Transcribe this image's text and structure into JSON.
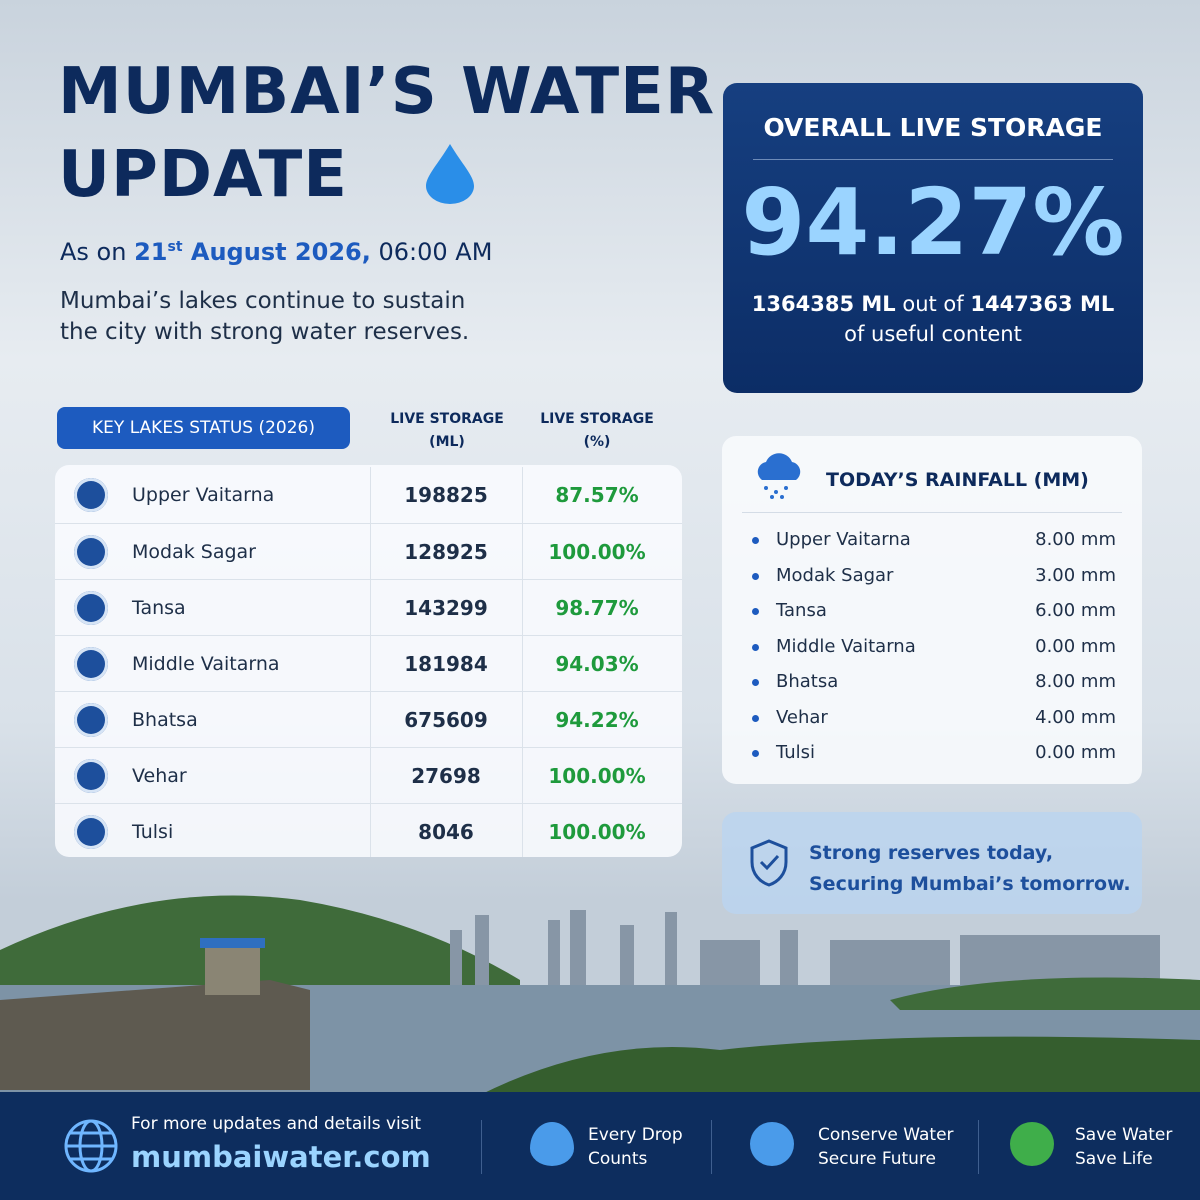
{
  "header": {
    "title_line1": "MUMBAI’S WATER",
    "title_line2": "UPDATE",
    "date_prefix": "As on",
    "date_day": "21",
    "date_suffix": "st",
    "date_rest": "August 2026,",
    "time": "06:00 AM",
    "description": "Mumbai’s lakes continue to sustain the city with strong water reserves."
  },
  "overall": {
    "title": "OVERALL LIVE STORAGE",
    "percent": "94.27%",
    "detail_amount": "1364385 ML",
    "detail_mid": "out of",
    "detail_total": "1447363 ML",
    "detail_end": "of useful content"
  },
  "lakes": {
    "badge": "KEY LAKES STATUS (2026)",
    "col_ml": [
      "LIVE STORAGE",
      "(ML)"
    ],
    "col_pct": [
      "LIVE STORAGE",
      "(%)"
    ],
    "rows": [
      [
        "Upper Vaitarna",
        "198825",
        "87.57%"
      ],
      [
        "Modak Sagar",
        "128925",
        "100.00%"
      ],
      [
        "Tansa",
        "143299",
        "98.77%"
      ],
      [
        "Middle Vaitarna",
        "181984",
        "94.03%"
      ],
      [
        "Bhatsa",
        "675609",
        "94.22%"
      ],
      [
        "Vehar",
        "27698",
        "100.00%"
      ],
      [
        "Tulsi",
        "8046",
        "100.00%"
      ]
    ]
  },
  "rainfall": {
    "title": "TODAY’S RAINFALL (MM)",
    "rows": [
      [
        "Upper Vaitarna",
        "8.00 mm"
      ],
      [
        "Modak Sagar",
        "3.00 mm"
      ],
      [
        "Tansa",
        "6.00 mm"
      ],
      [
        "Middle Vaitarna",
        "0.00 mm"
      ],
      [
        "Bhatsa",
        "8.00 mm"
      ],
      [
        "Vehar",
        "4.00 mm"
      ],
      [
        "Tulsi",
        "0.00 mm"
      ]
    ]
  },
  "banner": {
    "line1": "Strong reserves today,",
    "line2": "Securing Mumbai’s tomorrow."
  },
  "footer": {
    "visit": "For more updates and details visit",
    "site": "mumbaiwater.com",
    "items": [
      [
        "Every Drop",
        "Counts"
      ],
      [
        "Conserve Water",
        "Secure Future"
      ],
      [
        "Save Water",
        "Save Life"
      ]
    ]
  }
}
